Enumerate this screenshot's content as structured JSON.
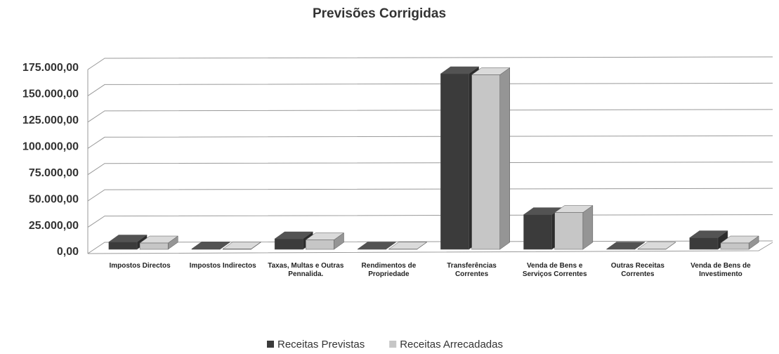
{
  "chart_data": {
    "type": "bar3d",
    "title": "Previsões Corrigidas",
    "categories": [
      "Impostos Directos",
      "Impostos Indirectos",
      "Taxas, Multas e Outras Pennalida.",
      "Rendimentos de Propriedade",
      "Transferências Correntes",
      "Venda de Bens e Serviços Correntes",
      "Outras Receitas Correntes",
      "Venda de Bens de Investimento"
    ],
    "series": [
      {
        "name": "Receitas Previstas",
        "color": "#3b3b3b",
        "values": [
          7000,
          500,
          10000,
          300,
          167000,
          33000,
          300,
          11000
        ]
      },
      {
        "name": "Receitas Arrecadadas",
        "color": "#c6c6c6",
        "values": [
          6000,
          300,
          9000,
          200,
          166000,
          35000,
          200,
          6000
        ]
      }
    ],
    "ylim": [
      0,
      175000
    ],
    "yticks": [
      {
        "value": 0,
        "label": "0,00"
      },
      {
        "value": 25000,
        "label": "25.000,00"
      },
      {
        "value": 50000,
        "label": "50.000,00"
      },
      {
        "value": 75000,
        "label": "75.000,00"
      },
      {
        "value": 100000,
        "label": "100.000,00"
      },
      {
        "value": 125000,
        "label": "125.000,00"
      },
      {
        "value": 150000,
        "label": "150.000,00"
      },
      {
        "value": 175000,
        "label": "175.000,00"
      }
    ],
    "grid": true,
    "legend": "bottom"
  }
}
